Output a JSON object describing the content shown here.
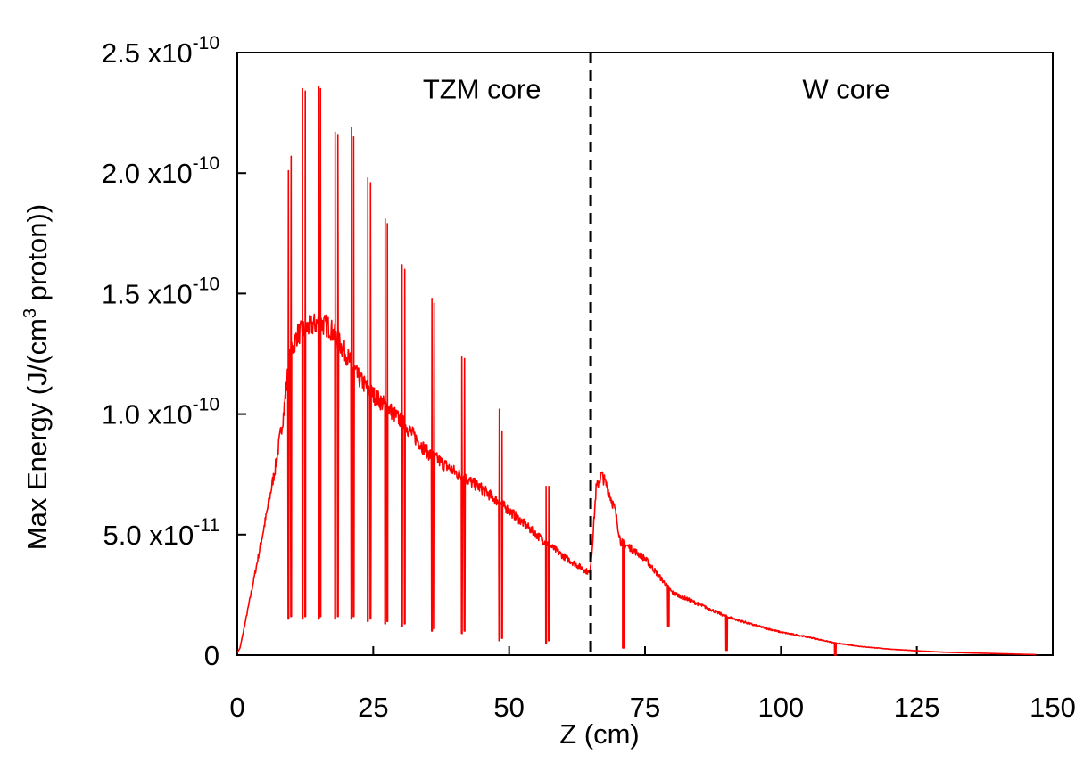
{
  "chart_data": {
    "type": "line",
    "title": "",
    "xlabel": "Z  (cm)",
    "ylabel_main": "Max  Energy  (J/(cm",
    "ylabel_sup": "3",
    "ylabel_tail": " proton))",
    "xlim": [
      0,
      150
    ],
    "ylim": [
      0,
      2.5e-10
    ],
    "grid": false,
    "x_ticks": [
      {
        "value": 0,
        "label": "0"
      },
      {
        "value": 25,
        "label": "25"
      },
      {
        "value": 50,
        "label": "50"
      },
      {
        "value": 75,
        "label": "75"
      },
      {
        "value": 100,
        "label": "100"
      },
      {
        "value": 125,
        "label": "125"
      },
      {
        "value": 150,
        "label": "150"
      }
    ],
    "y_ticks": [
      {
        "value": 0,
        "mant": "0",
        "exp": ""
      },
      {
        "value": 5e-11,
        "mant": "5.0 x10",
        "exp": "-11"
      },
      {
        "value": 1e-10,
        "mant": "1.0 x10",
        "exp": "-10"
      },
      {
        "value": 1.5e-10,
        "mant": "1.5 x10",
        "exp": "-10"
      },
      {
        "value": 2e-10,
        "mant": "2.0 x10",
        "exp": "-10"
      },
      {
        "value": 2.5e-10,
        "mant": "2.5 x10",
        "exp": "-10"
      }
    ],
    "divider": {
      "x": 65,
      "style": "dashed"
    },
    "annotations": [
      {
        "text": "TZM  core",
        "x": 45,
        "y": 2.35e-10
      },
      {
        "text": "W  core",
        "x": 112,
        "y": 2.35e-10
      }
    ],
    "series": [
      {
        "name": "Max Energy",
        "color": "#ff0000",
        "envelope": [
          [
            0.0,
            1e-12
          ],
          [
            0.5,
            3e-12
          ],
          [
            1.5,
            1.4e-11
          ],
          [
            3.0,
            3.1e-11
          ],
          [
            5.0,
            5.4e-11
          ],
          [
            7.0,
            7.8e-11
          ],
          [
            8.5,
            1e-10
          ],
          [
            9.5,
            1.22e-10
          ],
          [
            11,
            1.33e-10
          ],
          [
            13,
            1.36e-10
          ],
          [
            15,
            1.38e-10
          ],
          [
            17,
            1.36e-10
          ],
          [
            20,
            1.25e-10
          ],
          [
            22,
            1.16e-10
          ],
          [
            25,
            1.08e-10
          ],
          [
            28,
            1.02e-10
          ],
          [
            31,
            9.5e-11
          ],
          [
            35,
            8.4e-11
          ],
          [
            40,
            7.6e-11
          ],
          [
            45,
            6.9e-11
          ],
          [
            50,
            6e-11
          ],
          [
            55,
            5e-11
          ],
          [
            60,
            4.1e-11
          ],
          [
            64.8,
            3.4e-11
          ],
          [
            65.2,
            4.2e-11
          ],
          [
            66,
            6.9e-11
          ],
          [
            67,
            7.5e-11
          ],
          [
            68,
            7e-11
          ],
          [
            69.5,
            6e-11
          ],
          [
            70.5,
            4.7e-11
          ],
          [
            72,
            4.5e-11
          ],
          [
            75,
            4e-11
          ],
          [
            80,
            2.6e-11
          ],
          [
            85,
            2.1e-11
          ],
          [
            90,
            1.6e-11
          ],
          [
            95,
            1.25e-11
          ],
          [
            100,
            9.5e-12
          ],
          [
            105,
            7.5e-12
          ],
          [
            110,
            5e-12
          ],
          [
            115,
            3.5e-12
          ],
          [
            120,
            2.5e-12
          ],
          [
            125,
            1.8e-12
          ],
          [
            130,
            1.2e-12
          ],
          [
            140,
            6e-13
          ],
          [
            147,
            2e-13
          ]
        ],
        "spikes": [
          {
            "x": 9.4,
            "peak": 2.01e-10,
            "min": 1.5e-11
          },
          {
            "x": 9.9,
            "peak": 2.07e-10,
            "min": 1.6e-11
          },
          {
            "x": 12.0,
            "peak": 2.35e-10,
            "min": 1.5e-11
          },
          {
            "x": 12.5,
            "peak": 2.34e-10,
            "min": 1.6e-11
          },
          {
            "x": 15.0,
            "peak": 2.36e-10,
            "min": 1.5e-11
          },
          {
            "x": 15.3,
            "peak": 2.35e-10,
            "min": 1.6e-11
          },
          {
            "x": 18.0,
            "peak": 2.17e-10,
            "min": 1.5e-11
          },
          {
            "x": 18.5,
            "peak": 2.16e-10,
            "min": 1.6e-11
          },
          {
            "x": 21.0,
            "peak": 2.19e-10,
            "min": 1.5e-11
          },
          {
            "x": 21.4,
            "peak": 2.15e-10,
            "min": 1.6e-11
          },
          {
            "x": 24.0,
            "peak": 1.98e-10,
            "min": 1.4e-11
          },
          {
            "x": 24.5,
            "peak": 1.96e-10,
            "min": 1.5e-11
          },
          {
            "x": 27.2,
            "peak": 1.81e-10,
            "min": 1.3e-11
          },
          {
            "x": 27.6,
            "peak": 1.79e-10,
            "min": 1.4e-11
          },
          {
            "x": 30.3,
            "peak": 1.62e-10,
            "min": 1.2e-11
          },
          {
            "x": 30.8,
            "peak": 1.6e-10,
            "min": 1.3e-11
          },
          {
            "x": 35.8,
            "peak": 1.48e-10,
            "min": 1e-11
          },
          {
            "x": 36.2,
            "peak": 1.46e-10,
            "min": 1.1e-11
          },
          {
            "x": 41.3,
            "peak": 1.24e-10,
            "min": 9e-12
          },
          {
            "x": 41.8,
            "peak": 1.23e-10,
            "min": 1e-11
          },
          {
            "x": 48.2,
            "peak": 1.02e-10,
            "min": 6e-12
          },
          {
            "x": 48.7,
            "peak": 9.3e-11,
            "min": 7e-12
          },
          {
            "x": 56.8,
            "peak": 7e-11,
            "min": 5e-12
          },
          {
            "x": 57.3,
            "peak": 7e-11,
            "min": 6e-12
          }
        ],
        "dips": [
          {
            "x": 71.0,
            "min": 3e-12
          },
          {
            "x": 79.3,
            "min": 1.2e-11
          },
          {
            "x": 90.0,
            "min": 2e-12
          },
          {
            "x": 110.0,
            "min": 0
          }
        ]
      }
    ]
  }
}
